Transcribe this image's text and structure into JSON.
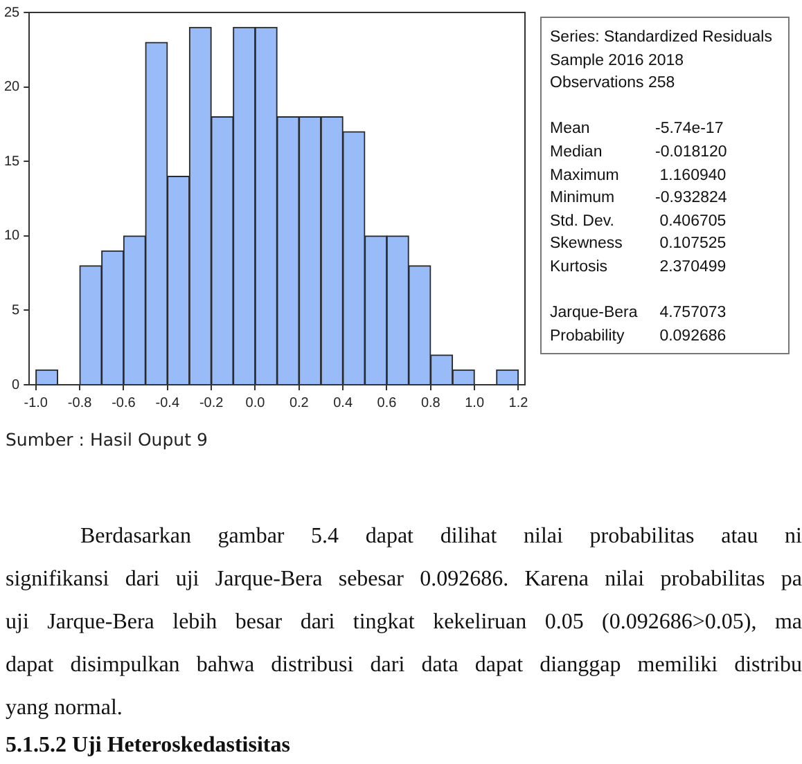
{
  "chart_data": {
    "type": "histogram",
    "bins": [
      -1.0,
      -0.9,
      -0.8,
      -0.7,
      -0.6,
      -0.5,
      -0.4,
      -0.3,
      -0.2,
      -0.1,
      0.0,
      0.1,
      0.2,
      0.3,
      0.4,
      0.5,
      0.6,
      0.7,
      0.8,
      0.9,
      1.0,
      1.1,
      1.2
    ],
    "values": [
      1,
      0,
      8,
      9,
      10,
      23,
      14,
      24,
      18,
      24,
      24,
      18,
      18,
      18,
      17,
      10,
      10,
      8,
      2,
      1,
      0,
      1
    ],
    "color": "#99bbf8",
    "xlim": [
      -1.03,
      1.23
    ],
    "xticks": [
      {
        "value": -1.0,
        "label": "-1.0"
      },
      {
        "value": -0.8,
        "label": "-0.8"
      },
      {
        "value": -0.6,
        "label": "-0.6"
      },
      {
        "value": -0.4,
        "label": "-0.4"
      },
      {
        "value": -0.2,
        "label": "-0.2"
      },
      {
        "value": 0,
        "label": "0.0"
      },
      {
        "value": 0.2,
        "label": "0.2"
      },
      {
        "value": 0.4,
        "label": "0.4"
      },
      {
        "value": 0.6,
        "label": "0.6"
      },
      {
        "value": 0.8,
        "label": "0.8"
      },
      {
        "value": 1.0,
        "label": "1.0"
      },
      {
        "value": 1.2,
        "label": "1.2"
      }
    ],
    "ylim": [
      0,
      25
    ],
    "yticks": [
      0,
      5,
      10,
      15,
      20,
      25
    ],
    "grid": false,
    "legend": false,
    "annotations": [
      "Series: Standardized Residuals",
      "Sample 2016 2018",
      "Observations 258",
      "Mean\t-5.74e-17",
      "Median\t-0.018120",
      "Maximum\t 1.160940",
      "Minimum\t-0.932824",
      "Std. Dev.\t 0.406705",
      "Skewness\t 0.107525",
      "Kurtosis\t 2.370499",
      "Jarque-Bera\t 4.757073",
      "Probability\t 0.092686",
      "Sumber : Hasil Ouput 9",
      "Berdasarkan gambar 5.4 dapat dilihat nilai probabilitas atau ni",
      "signifikansi dari uji Jarque-Bera sebesar 0.092686. Karena nilai probabilitas pa",
      "uji Jarque-Bera lebih besar dari tingkat kekeliruan 0.05 (0.092686>0.05), ma",
      "dapat disimpulkan bahwa distribusi dari data dapat dianggap memiliki distribu",
      "yang normal.",
      "5.1.5.2 Uji Heteroskedastisitas"
    ]
  }
}
